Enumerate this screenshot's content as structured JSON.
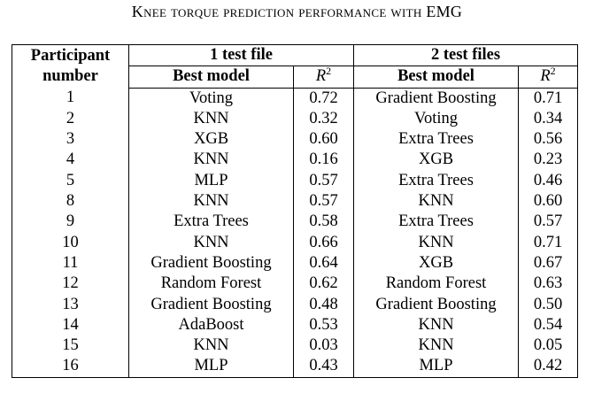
{
  "caption": "Knee torque prediction performance with EMG",
  "header": {
    "participant_line1": "Participant",
    "participant_line2": "number",
    "group1": "1 test file",
    "group2": "2 test files",
    "best_model": "Best model",
    "r2_symbol": "R",
    "r2_exponent": "2"
  },
  "rows": [
    {
      "participant": "1",
      "model1": "Voting",
      "r2_1": "0.72",
      "model2": "Gradient Boosting",
      "r2_2": "0.71"
    },
    {
      "participant": "2",
      "model1": "KNN",
      "r2_1": "0.32",
      "model2": "Voting",
      "r2_2": "0.34"
    },
    {
      "participant": "3",
      "model1": "XGB",
      "r2_1": "0.60",
      "model2": "Extra Trees",
      "r2_2": "0.56"
    },
    {
      "participant": "4",
      "model1": "KNN",
      "r2_1": "0.16",
      "model2": "XGB",
      "r2_2": "0.23"
    },
    {
      "participant": "5",
      "model1": "MLP",
      "r2_1": "0.57",
      "model2": "Extra Trees",
      "r2_2": "0.46"
    },
    {
      "participant": "8",
      "model1": "KNN",
      "r2_1": "0.57",
      "model2": "KNN",
      "r2_2": "0.60"
    },
    {
      "participant": "9",
      "model1": "Extra Trees",
      "r2_1": "0.58",
      "model2": "Extra Trees",
      "r2_2": "0.57"
    },
    {
      "participant": "10",
      "model1": "KNN",
      "r2_1": "0.66",
      "model2": "KNN",
      "r2_2": "0.71"
    },
    {
      "participant": "11",
      "model1": "Gradient Boosting",
      "r2_1": "0.64",
      "model2": "XGB",
      "r2_2": "0.67"
    },
    {
      "participant": "12",
      "model1": "Random Forest",
      "r2_1": "0.62",
      "model2": "Random Forest",
      "r2_2": "0.63"
    },
    {
      "participant": "13",
      "model1": "Gradient Boosting",
      "r2_1": "0.48",
      "model2": "Gradient Boosting",
      "r2_2": "0.50"
    },
    {
      "participant": "14",
      "model1": "AdaBoost",
      "r2_1": "0.53",
      "model2": "KNN",
      "r2_2": "0.54"
    },
    {
      "participant": "15",
      "model1": "KNN",
      "r2_1": "0.03",
      "model2": "KNN",
      "r2_2": "0.05"
    },
    {
      "participant": "16",
      "model1": "MLP",
      "r2_1": "0.43",
      "model2": "MLP",
      "r2_2": "0.42"
    }
  ]
}
